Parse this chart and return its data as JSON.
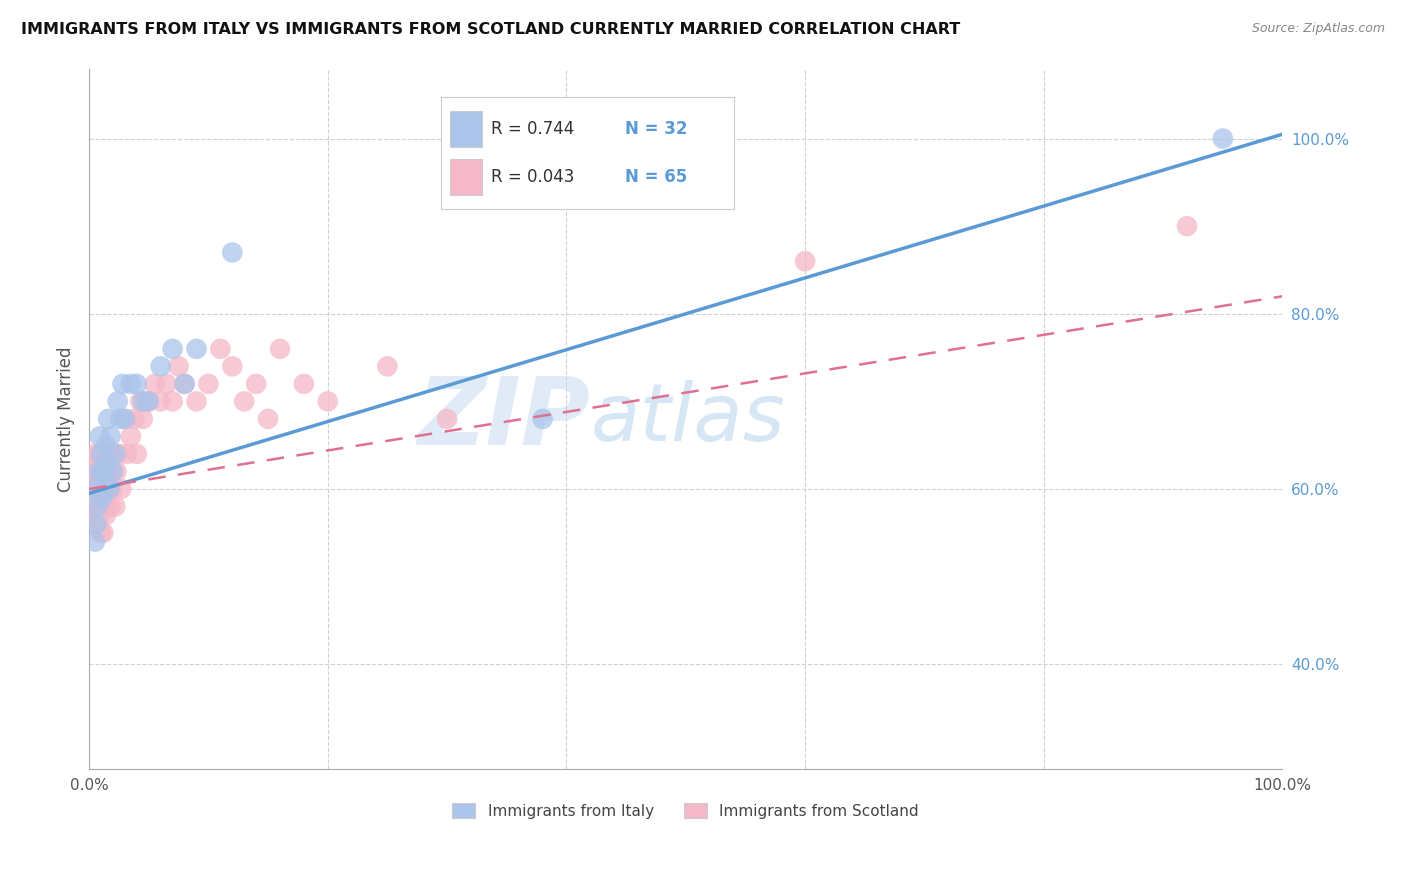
{
  "title": "IMMIGRANTS FROM ITALY VS IMMIGRANTS FROM SCOTLAND CURRENTLY MARRIED CORRELATION CHART",
  "source": "Source: ZipAtlas.com",
  "ylabel": "Currently Married",
  "xlim": [
    0,
    1.0
  ],
  "ylim": [
    0.28,
    1.08
  ],
  "x_ticks": [
    0.0,
    0.2,
    0.4,
    0.6,
    0.8,
    1.0
  ],
  "y_ticks": [
    0.4,
    0.6,
    0.8,
    1.0
  ],
  "legend1_r": "0.744",
  "legend1_n": "32",
  "legend2_r": "0.043",
  "legend2_n": "65",
  "legend1_label": "Immigrants from Italy",
  "legend2_label": "Immigrants from Scotland",
  "blue_color": "#aac4ea",
  "pink_color": "#f5b8c8",
  "blue_line_color": "#5b9bd5",
  "pink_line_color": "#e07090",
  "watermark_zip": "ZIP",
  "watermark_atlas": "atlas",
  "grid_color": "#d0d0d0",
  "tick_label_color": "#5b9bd5",
  "italy_x": [
    0.003,
    0.005,
    0.006,
    0.007,
    0.008,
    0.009,
    0.01,
    0.011,
    0.012,
    0.013,
    0.014,
    0.015,
    0.016,
    0.017,
    0.018,
    0.02,
    0.022,
    0.024,
    0.026,
    0.028,
    0.03,
    0.035,
    0.04,
    0.045,
    0.05,
    0.06,
    0.07,
    0.08,
    0.09,
    0.12,
    0.38,
    0.95
  ],
  "italy_y": [
    0.6,
    0.54,
    0.56,
    0.58,
    0.62,
    0.66,
    0.64,
    0.59,
    0.62,
    0.61,
    0.65,
    0.63,
    0.68,
    0.6,
    0.66,
    0.62,
    0.64,
    0.7,
    0.68,
    0.72,
    0.68,
    0.72,
    0.72,
    0.7,
    0.7,
    0.74,
    0.76,
    0.72,
    0.76,
    0.87,
    0.68,
    1.0
  ],
  "scotland_x": [
    0.001,
    0.002,
    0.003,
    0.004,
    0.005,
    0.005,
    0.006,
    0.006,
    0.007,
    0.007,
    0.008,
    0.008,
    0.009,
    0.009,
    0.01,
    0.01,
    0.011,
    0.011,
    0.012,
    0.012,
    0.013,
    0.013,
    0.014,
    0.015,
    0.015,
    0.016,
    0.016,
    0.017,
    0.018,
    0.019,
    0.02,
    0.021,
    0.022,
    0.023,
    0.025,
    0.027,
    0.03,
    0.032,
    0.035,
    0.038,
    0.04,
    0.043,
    0.045,
    0.048,
    0.05,
    0.055,
    0.06,
    0.065,
    0.07,
    0.075,
    0.08,
    0.09,
    0.1,
    0.11,
    0.12,
    0.13,
    0.14,
    0.15,
    0.16,
    0.18,
    0.2,
    0.25,
    0.3,
    0.6,
    0.92
  ],
  "scotland_y": [
    0.6,
    0.58,
    0.57,
    0.62,
    0.6,
    0.64,
    0.58,
    0.63,
    0.56,
    0.61,
    0.6,
    0.64,
    0.57,
    0.62,
    0.55,
    0.6,
    0.58,
    0.62,
    0.55,
    0.59,
    0.58,
    0.62,
    0.57,
    0.6,
    0.64,
    0.58,
    0.62,
    0.6,
    0.58,
    0.62,
    0.6,
    0.64,
    0.58,
    0.62,
    0.64,
    0.6,
    0.68,
    0.64,
    0.66,
    0.68,
    0.64,
    0.7,
    0.68,
    0.7,
    0.7,
    0.72,
    0.7,
    0.72,
    0.7,
    0.74,
    0.72,
    0.7,
    0.72,
    0.76,
    0.74,
    0.7,
    0.72,
    0.68,
    0.76,
    0.72,
    0.7,
    0.74,
    0.68,
    0.86,
    0.9
  ],
  "blue_trend_x0": 0.0,
  "blue_trend_y0": 0.595,
  "blue_trend_x1": 1.0,
  "blue_trend_y1": 1.005,
  "pink_trend_x0": 0.0,
  "pink_trend_y0": 0.6,
  "pink_trend_x1": 1.0,
  "pink_trend_y1": 0.82
}
